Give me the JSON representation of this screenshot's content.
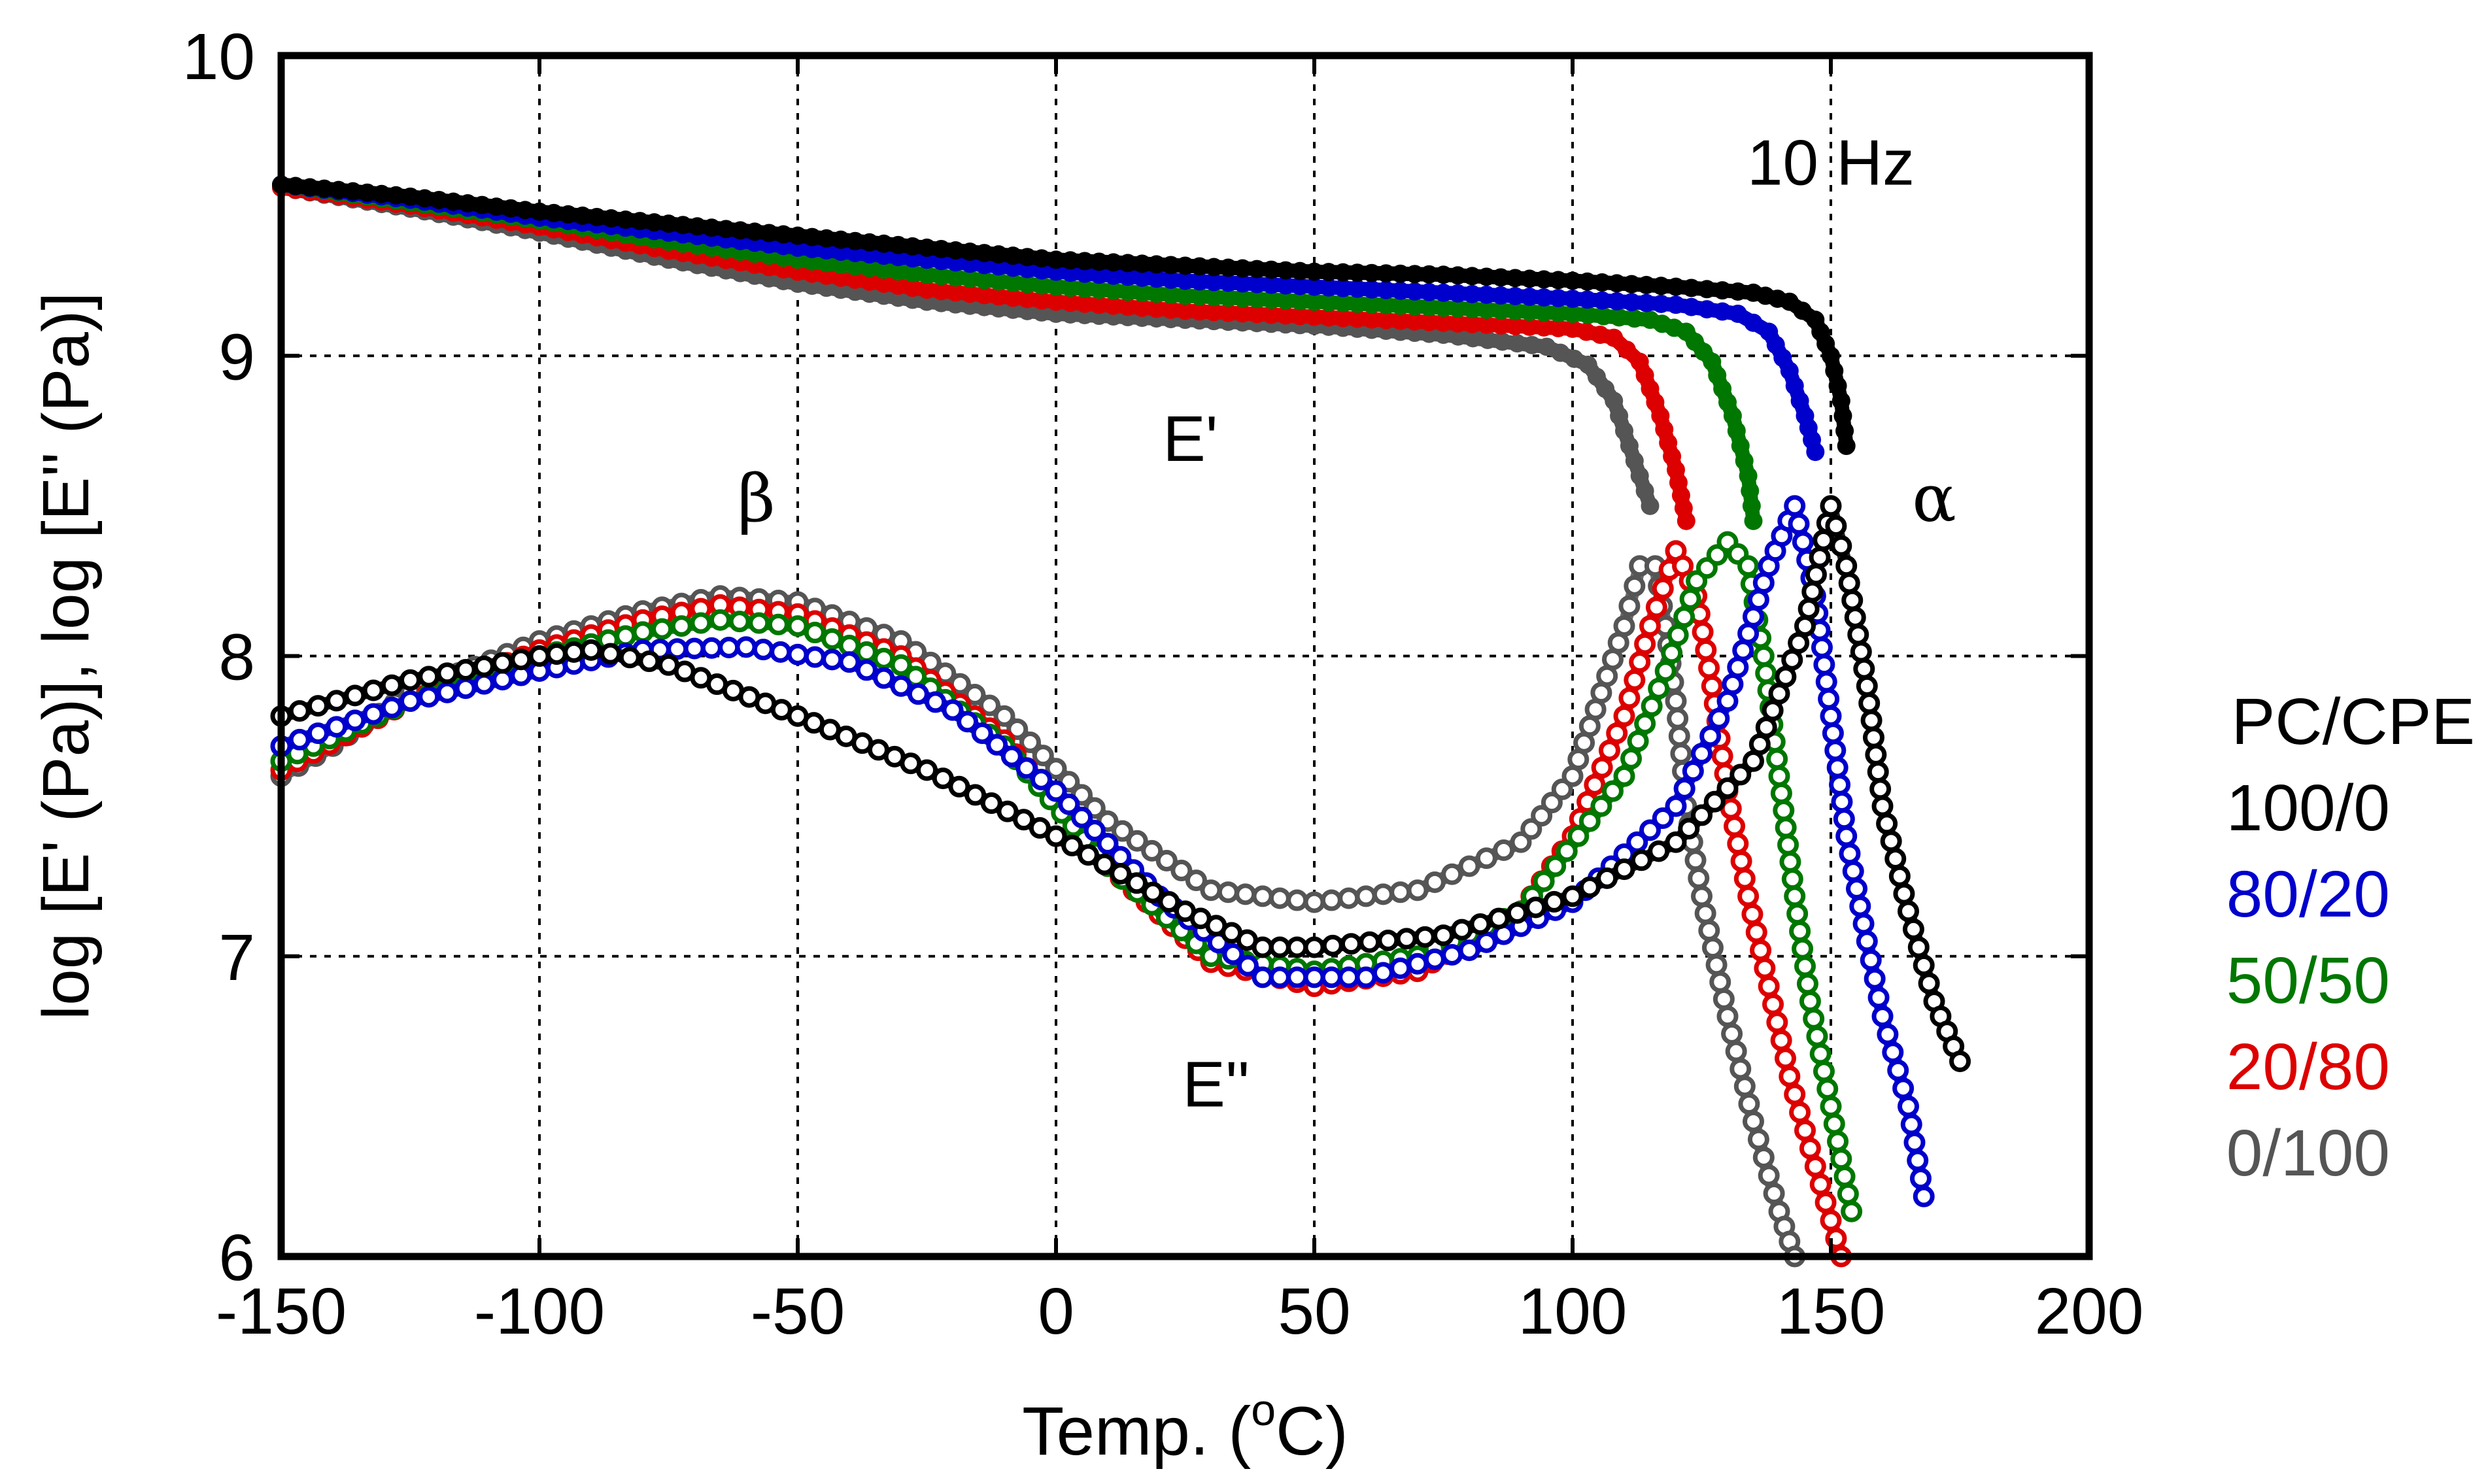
{
  "chart_data": {
    "type": "scatter",
    "title": "",
    "xlabel": "Temp. (oC)",
    "xlabel_main": "Temp. (",
    "xlabel_sup": "o",
    "xlabel_end": "C)",
    "ylabel": "log [E' (Pa)], log [E'' (Pa)]",
    "xlim": [
      -150,
      200
    ],
    "ylim": [
      6,
      10
    ],
    "xticks": [
      -150,
      -100,
      -50,
      0,
      50,
      100,
      150,
      200
    ],
    "yticks": [
      6,
      7,
      8,
      9,
      10
    ],
    "grid": true,
    "annotations": {
      "freq": "10 Hz",
      "storage": "E'",
      "loss": "E''",
      "beta": "β",
      "alpha": "α"
    },
    "legend_title": "PC/CPE",
    "legend_position": "right",
    "series": [
      {
        "name": "100/0",
        "color": "#000000",
        "storage": {
          "x": [
            -150,
            -125,
            -100,
            -75,
            -50,
            -25,
            0,
            25,
            50,
            75,
            100,
            120,
            135,
            142,
            147,
            150,
            152,
            153
          ],
          "y": [
            9.57,
            9.53,
            9.48,
            9.44,
            9.4,
            9.36,
            9.32,
            9.3,
            9.28,
            9.27,
            9.25,
            9.23,
            9.21,
            9.18,
            9.12,
            9.0,
            8.85,
            8.7
          ]
        },
        "loss": {
          "x": [
            -150,
            -125,
            -100,
            -90,
            -75,
            -50,
            -25,
            0,
            25,
            40,
            50,
            75,
            100,
            120,
            135,
            145,
            150,
            153,
            157,
            160,
            165,
            170,
            175
          ],
          "y": [
            7.8,
            7.92,
            8.0,
            8.02,
            7.97,
            7.8,
            7.62,
            7.4,
            7.15,
            7.03,
            7.03,
            7.07,
            7.2,
            7.38,
            7.65,
            8.1,
            8.5,
            8.3,
            7.9,
            7.5,
            7.15,
            6.85,
            6.65
          ]
        }
      },
      {
        "name": "80/20",
        "color": "#0000cc",
        "storage": {
          "x": [
            -150,
            -125,
            -100,
            -75,
            -50,
            -25,
            0,
            25,
            50,
            75,
            100,
            120,
            132,
            138,
            142,
            145,
            147
          ],
          "y": [
            9.57,
            9.52,
            9.46,
            9.41,
            9.36,
            9.32,
            9.28,
            9.25,
            9.23,
            9.21,
            9.19,
            9.17,
            9.14,
            9.08,
            8.95,
            8.8,
            8.68
          ]
        },
        "loss": {
          "x": [
            -150,
            -125,
            -100,
            -80,
            -60,
            -40,
            -20,
            0,
            20,
            40,
            60,
            80,
            100,
            120,
            130,
            138,
            143,
            147,
            150,
            153,
            157,
            160,
            165,
            168
          ],
          "y": [
            7.7,
            7.85,
            7.95,
            8.02,
            8.03,
            7.98,
            7.82,
            7.55,
            7.2,
            6.93,
            6.93,
            7.02,
            7.18,
            7.5,
            7.85,
            8.3,
            8.5,
            8.2,
            7.8,
            7.4,
            7.05,
            6.8,
            6.5,
            6.2
          ]
        }
      },
      {
        "name": "50/50",
        "color": "#007700",
        "storage": {
          "x": [
            -150,
            -125,
            -100,
            -75,
            -50,
            -25,
            0,
            25,
            50,
            75,
            100,
            115,
            122,
            127,
            131,
            134,
            135
          ],
          "y": [
            9.57,
            9.51,
            9.45,
            9.38,
            9.32,
            9.27,
            9.23,
            9.2,
            9.18,
            9.16,
            9.14,
            9.12,
            9.08,
            8.98,
            8.8,
            8.6,
            8.45
          ]
        },
        "loss": {
          "x": [
            -150,
            -125,
            -100,
            -80,
            -65,
            -50,
            -30,
            -10,
            10,
            30,
            50,
            70,
            90,
            110,
            118,
            124,
            130,
            134,
            137,
            140,
            143,
            146,
            150,
            154
          ],
          "y": [
            7.65,
            7.85,
            8.0,
            8.08,
            8.12,
            8.1,
            7.97,
            7.7,
            7.3,
            7.0,
            6.95,
            7.0,
            7.15,
            7.6,
            7.95,
            8.25,
            8.38,
            8.3,
            8.0,
            7.6,
            7.2,
            6.85,
            6.5,
            6.15
          ]
        }
      },
      {
        "name": "20/80",
        "color": "#dd0000",
        "storage": {
          "x": [
            -150,
            -125,
            -100,
            -75,
            -50,
            -25,
            0,
            25,
            50,
            75,
            100,
            108,
            113,
            117,
            120,
            122
          ],
          "y": [
            9.56,
            9.5,
            9.43,
            9.35,
            9.28,
            9.22,
            9.18,
            9.15,
            9.13,
            9.11,
            9.09,
            9.06,
            8.98,
            8.8,
            8.62,
            8.45
          ]
        },
        "loss": {
          "x": [
            -150,
            -125,
            -100,
            -80,
            -65,
            -50,
            -30,
            -10,
            10,
            30,
            50,
            70,
            90,
            100,
            110,
            115,
            120,
            124,
            127,
            130,
            134,
            138,
            142,
            147,
            152
          ],
          "y": [
            7.62,
            7.85,
            8.02,
            8.12,
            8.17,
            8.14,
            8.0,
            7.72,
            7.3,
            6.98,
            6.9,
            6.95,
            7.15,
            7.4,
            7.8,
            8.1,
            8.35,
            8.2,
            7.9,
            7.55,
            7.2,
            6.9,
            6.6,
            6.3,
            6.0
          ]
        }
      },
      {
        "name": "0/100",
        "color": "#555555",
        "storage": {
          "x": [
            -150,
            -125,
            -100,
            -75,
            -50,
            -25,
            0,
            25,
            50,
            75,
            95,
            103,
            108,
            111,
            113,
            115
          ],
          "y": [
            9.56,
            9.49,
            9.41,
            9.32,
            9.24,
            9.18,
            9.14,
            9.12,
            9.1,
            9.07,
            9.03,
            8.97,
            8.85,
            8.7,
            8.6,
            8.5
          ]
        },
        "loss": {
          "x": [
            -150,
            -140,
            -125,
            -100,
            -80,
            -65,
            -50,
            -30,
            -10,
            10,
            30,
            50,
            70,
            90,
            100,
            110,
            113,
            116,
            118,
            120,
            122,
            125,
            130,
            135,
            140,
            143
          ],
          "y": [
            7.6,
            7.7,
            7.88,
            8.05,
            8.15,
            8.2,
            8.18,
            8.05,
            7.8,
            7.45,
            7.22,
            7.18,
            7.22,
            7.38,
            7.6,
            8.1,
            8.3,
            8.3,
            8.1,
            7.85,
            7.5,
            7.2,
            6.8,
            6.45,
            6.15,
            6.0
          ]
        }
      }
    ]
  }
}
